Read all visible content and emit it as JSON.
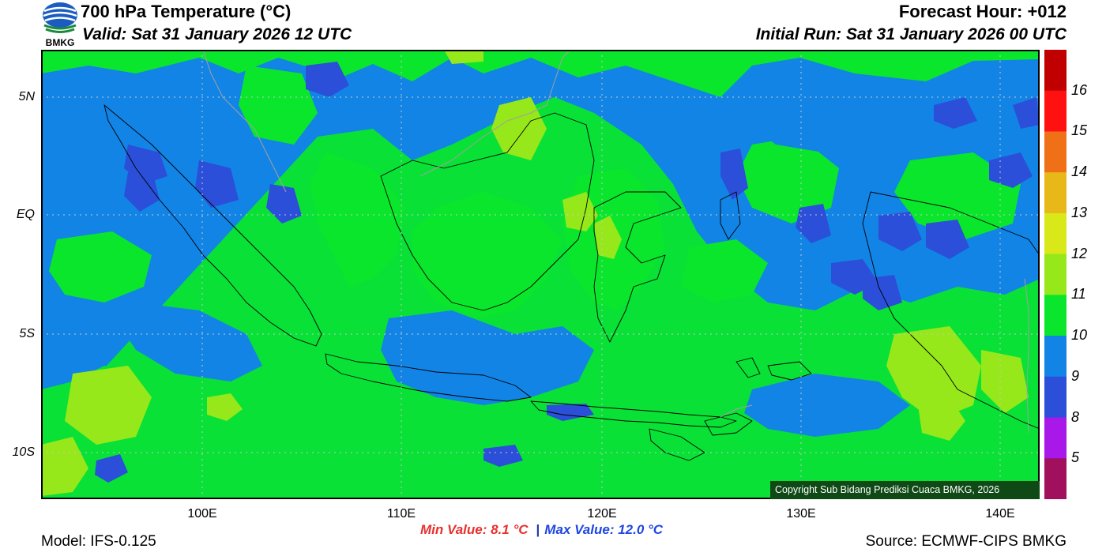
{
  "header": {
    "title": "700 hPa Temperature (°C)",
    "valid": "Valid: Sat 31 January 2026 12 UTC",
    "forecast_hour": "Forecast Hour: +012",
    "initial_run": "Initial Run: Sat 31 January 2026 00 UTC",
    "logo_text": "BMKG"
  },
  "map": {
    "lat_labels": [
      "5N",
      "EQ",
      "5S",
      "10S"
    ],
    "lon_labels": [
      "100E",
      "110E",
      "120E",
      "130E",
      "140E"
    ],
    "copyright": "Copyright Sub Bidang Prediksi Cuaca BMKG, 2026"
  },
  "colorbar": {
    "labels": [
      "16",
      "15",
      "14",
      "13",
      "12",
      "11",
      "10",
      "9",
      "8",
      "5"
    ],
    "colors": [
      "#c00000",
      "#ff1111",
      "#f07018",
      "#e8b818",
      "#d8e818",
      "#96e81a",
      "#0ae62c",
      "#1284e6",
      "#2b4fd8",
      "#a818e8",
      "#a0105c"
    ]
  },
  "footer": {
    "model": "Model: IFS-0.125",
    "source": "Source: ECMWF-CIPS BMKG",
    "min_value": "Min Value: 8.1 °C",
    "separator": "|",
    "max_value": "Max Value: 12.0 °C"
  }
}
